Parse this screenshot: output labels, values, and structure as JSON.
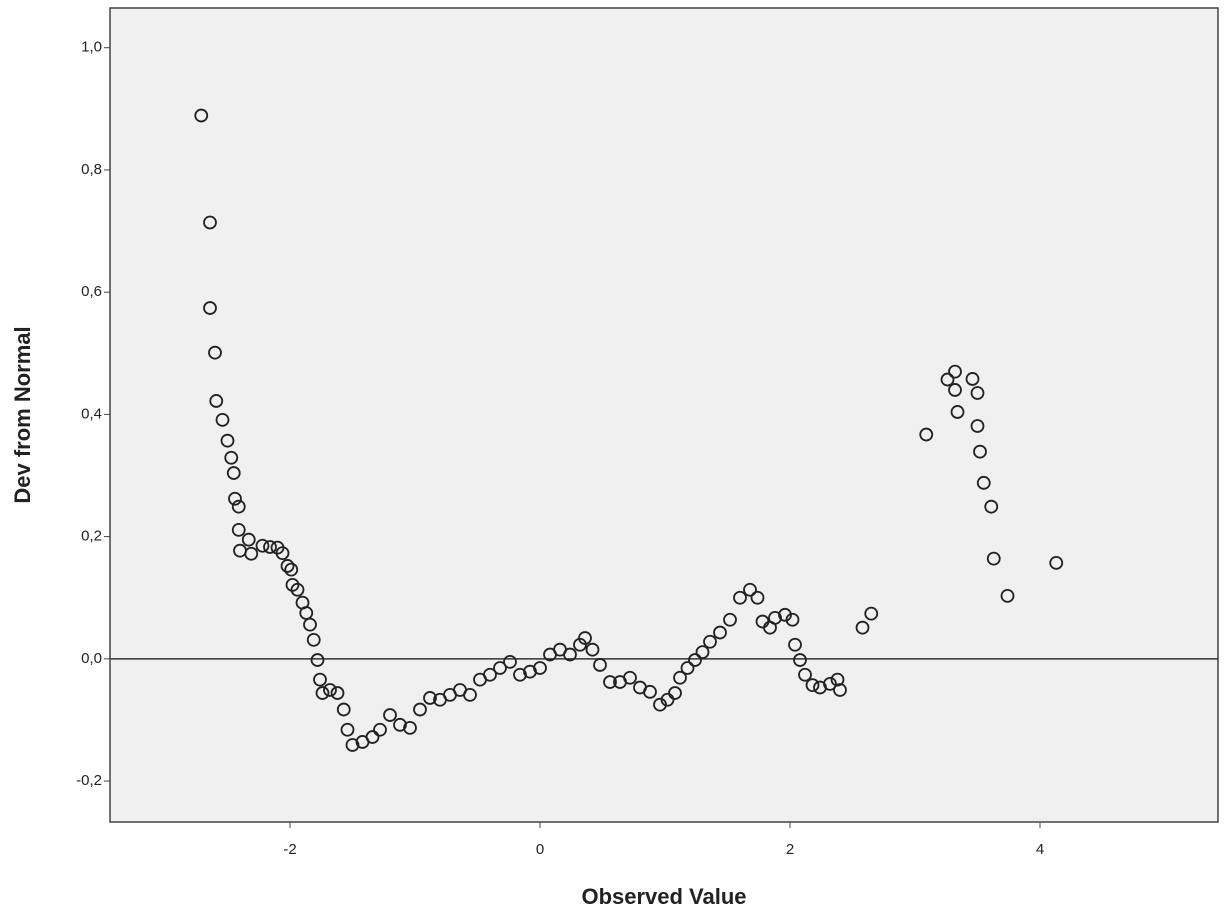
{
  "chart_data": {
    "type": "scatter",
    "x_label": "Observed Value",
    "y_label": "Dev from Normal",
    "xlim": [
      -3.44,
      5.424
    ],
    "ylim": [
      -0.267,
      1.065
    ],
    "xticks": [
      -2,
      0,
      2,
      4
    ],
    "yticks": [
      {
        "value": -0.2,
        "label": "-0,2"
      },
      {
        "value": 0,
        "label": "0,0"
      },
      {
        "value": 0.2,
        "label": "0,2"
      },
      {
        "value": 0.4,
        "label": "0,4"
      },
      {
        "value": 0.6,
        "label": "0,6"
      },
      {
        "value": 0.8,
        "label": "0,8"
      },
      {
        "value": 1.0,
        "label": "1,0"
      }
    ],
    "reference_line": 0,
    "color": "#222222",
    "x": [
      -2.71,
      -2.64,
      -2.64,
      -2.6,
      -2.59,
      -2.54,
      -2.5,
      -2.47,
      -2.45,
      -2.44,
      -2.41,
      -2.41,
      -2.33,
      -2.4,
      -2.31,
      -2.22,
      -2.16,
      -2.1,
      -2.06,
      -2.02,
      -1.99,
      -1.98,
      -1.94,
      -1.9,
      -1.87,
      -1.84,
      -1.81,
      -1.78,
      -1.76,
      -1.74,
      -1.68,
      -1.62,
      -1.57,
      -1.54,
      -1.5,
      -1.42,
      -1.34,
      -1.28,
      -1.2,
      -1.12,
      -1.04,
      -0.96,
      -0.88,
      -0.8,
      -0.72,
      -0.64,
      -0.56,
      -0.48,
      -0.4,
      -0.32,
      -0.24,
      -0.16,
      -0.08,
      0,
      0.08,
      0.16,
      0.24,
      0.32,
      0.36,
      0.42,
      0.48,
      0.56,
      0.64,
      0.72,
      0.8,
      0.88,
      0.96,
      1.02,
      1.08,
      1.12,
      1.18,
      1.24,
      1.3,
      1.36,
      1.44,
      1.52,
      1.6,
      1.68,
      1.74,
      1.78,
      1.84,
      1.88,
      1.96,
      2.02,
      2.04,
      2.08,
      2.12,
      2.18,
      2.24,
      2.32,
      2.38,
      2.4,
      2.58,
      2.65,
      3.09,
      3.26,
      3.32,
      3.32,
      3.34,
      3.46,
      3.5,
      3.5,
      3.52,
      3.55,
      3.61,
      3.63,
      3.74,
      4.13
    ],
    "y": [
      0.889,
      0.714,
      0.574,
      0.501,
      0.422,
      0.391,
      0.357,
      0.329,
      0.304,
      0.262,
      0.249,
      0.211,
      0.195,
      0.177,
      0.172,
      0.185,
      0.183,
      0.182,
      0.173,
      0.152,
      0.146,
      0.121,
      0.113,
      0.092,
      0.075,
      0.056,
      0.031,
      -0.002,
      -0.034,
      -0.056,
      -0.051,
      -0.056,
      -0.083,
      -0.116,
      -0.141,
      -0.136,
      -0.128,
      -0.116,
      -0.092,
      -0.108,
      -0.113,
      -0.083,
      -0.064,
      -0.067,
      -0.059,
      -0.051,
      -0.059,
      -0.034,
      -0.026,
      -0.015,
      -0.005,
      -0.026,
      -0.021,
      -0.015,
      0.007,
      0.015,
      0.007,
      0.023,
      0.034,
      0.015,
      -0.01,
      -0.038,
      -0.038,
      -0.031,
      -0.047,
      -0.054,
      -0.075,
      -0.067,
      -0.056,
      -0.031,
      -0.015,
      -0.002,
      0.011,
      0.028,
      0.043,
      0.064,
      0.1,
      0.113,
      0.1,
      0.061,
      0.051,
      0.067,
      0.072,
      0.064,
      0.023,
      -0.002,
      -0.026,
      -0.043,
      -0.047,
      -0.041,
      -0.034,
      -0.051,
      0.051,
      0.074,
      0.367,
      0.457,
      0.47,
      0.44,
      0.404,
      0.458,
      0.435,
      0.381,
      0.339,
      0.288,
      0.249,
      0.164,
      0.103,
      0.157
    ]
  }
}
